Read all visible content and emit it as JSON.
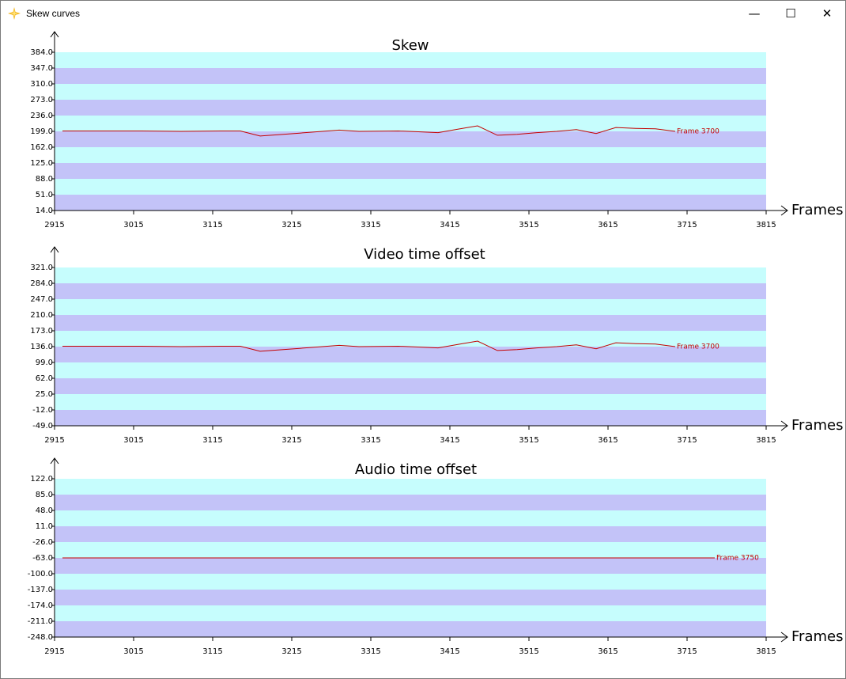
{
  "window": {
    "title": "Skew curves",
    "icon": "spark-icon",
    "minimize_glyph": "—",
    "maximize_glyph": "☐",
    "close_glyph": "✕"
  },
  "colors": {
    "band_light": "#c6fdfd",
    "band_dark": "#c3c3f8",
    "curve": "#c40000",
    "axis": "#000000"
  },
  "chart_data": [
    {
      "type": "line",
      "title": "Skew",
      "xlabel": "Frames",
      "ylabel": "",
      "xlim": [
        2915,
        3815
      ],
      "ylim": [
        14.0,
        384.0
      ],
      "xticks": [
        "2915",
        "3015",
        "3115",
        "3215",
        "3315",
        "3415",
        "3515",
        "3615",
        "3715",
        "3815"
      ],
      "yticks": [
        "14.0",
        "51.0",
        "88.0",
        "125.0",
        "162.0",
        "199.0",
        "236.0",
        "273.0",
        "310.0",
        "347.0",
        "384.0"
      ],
      "series": [
        {
          "x": [
            2925,
            3025,
            3075,
            3125,
            3150,
            3175,
            3225,
            3275,
            3300,
            3350,
            3375,
            3400,
            3425,
            3450,
            3475,
            3500,
            3525,
            3550,
            3575,
            3600,
            3625,
            3650,
            3675,
            3700
          ],
          "y": [
            200,
            200,
            199,
            200,
            200,
            188,
            195,
            202,
            199,
            200,
            198,
            196,
            204,
            212,
            190,
            192,
            196,
            199,
            203,
            194,
            208,
            206,
            205,
            199
          ]
        }
      ],
      "annotations": [
        {
          "text": "Frame 3700",
          "x": 3700,
          "y": 199
        }
      ]
    },
    {
      "type": "line",
      "title": "Video time offset",
      "xlabel": "Frames",
      "ylabel": "",
      "xlim": [
        2915,
        3815
      ],
      "ylim": [
        -49.0,
        321.0
      ],
      "xticks": [
        "2915",
        "3015",
        "3115",
        "3215",
        "3315",
        "3415",
        "3515",
        "3615",
        "3715",
        "3815"
      ],
      "yticks": [
        "-49.0",
        "-12.0",
        "25.0",
        "62.0",
        "99.0",
        "136.0",
        "173.0",
        "210.0",
        "247.0",
        "284.0",
        "321.0"
      ],
      "series": [
        {
          "x": [
            2925,
            3025,
            3075,
            3125,
            3150,
            3175,
            3225,
            3275,
            3300,
            3350,
            3375,
            3400,
            3425,
            3450,
            3475,
            3500,
            3525,
            3550,
            3575,
            3600,
            3625,
            3650,
            3675,
            3700
          ],
          "y": [
            137,
            137,
            136,
            137,
            137,
            125,
            132,
            139,
            136,
            137,
            135,
            133,
            141,
            149,
            127,
            129,
            133,
            136,
            140,
            131,
            145,
            143,
            142,
            136
          ]
        }
      ],
      "annotations": [
        {
          "text": "Frame 3700",
          "x": 3700,
          "y": 136
        }
      ]
    },
    {
      "type": "line",
      "title": "Audio time offset",
      "xlabel": "Frames",
      "ylabel": "",
      "xlim": [
        2915,
        3815
      ],
      "ylim": [
        -248.0,
        122.0
      ],
      "xticks": [
        "2915",
        "3015",
        "3115",
        "3215",
        "3315",
        "3415",
        "3515",
        "3615",
        "3715",
        "3815"
      ],
      "yticks": [
        "-248.0",
        "-211.0",
        "-174.0",
        "-137.0",
        "-100.0",
        "-63.0",
        "-26.0",
        "11.0",
        "48.0",
        "85.0",
        "122.0"
      ],
      "series": [
        {
          "x": [
            2925,
            3750
          ],
          "y": [
            -63,
            -63
          ]
        }
      ],
      "annotations": [
        {
          "text": "Frame 3750",
          "x": 3750,
          "y": -63
        }
      ]
    }
  ]
}
